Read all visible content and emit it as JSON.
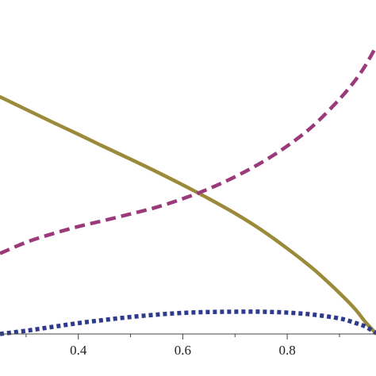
{
  "chart_data": {
    "type": "line",
    "title": "",
    "xlabel": "",
    "ylabel": "",
    "xlim": [
      0.25,
      0.97
    ],
    "ylim": [
      0,
      1
    ],
    "grid": false,
    "legend": "none",
    "x_ticks": [
      {
        "value": 0.4,
        "label": "0.4"
      },
      {
        "value": 0.6,
        "label": "0.6"
      },
      {
        "value": 0.8,
        "label": "0.8"
      }
    ],
    "series": [
      {
        "style": "solid",
        "color": "#9a8a3a",
        "points": [
          [
            0.25,
            0.81
          ],
          [
            0.3,
            0.767
          ],
          [
            0.35,
            0.724
          ],
          [
            0.4,
            0.682
          ],
          [
            0.45,
            0.639
          ],
          [
            0.5,
            0.597
          ],
          [
            0.55,
            0.554
          ],
          [
            0.6,
            0.509
          ],
          [
            0.65,
            0.462
          ],
          [
            0.7,
            0.412
          ],
          [
            0.75,
            0.356
          ],
          [
            0.8,
            0.292
          ],
          [
            0.85,
            0.222
          ],
          [
            0.9,
            0.14
          ],
          [
            0.93,
            0.085
          ],
          [
            0.95,
            0.04
          ],
          [
            0.97,
            0.002
          ]
        ]
      },
      {
        "style": "dashed",
        "color": "#9b3a7a",
        "points": [
          [
            0.25,
            0.275
          ],
          [
            0.3,
            0.313
          ],
          [
            0.35,
            0.342
          ],
          [
            0.4,
            0.367
          ],
          [
            0.45,
            0.388
          ],
          [
            0.5,
            0.41
          ],
          [
            0.55,
            0.433
          ],
          [
            0.6,
            0.462
          ],
          [
            0.65,
            0.496
          ],
          [
            0.7,
            0.537
          ],
          [
            0.75,
            0.585
          ],
          [
            0.8,
            0.642
          ],
          [
            0.85,
            0.712
          ],
          [
            0.9,
            0.802
          ],
          [
            0.93,
            0.866
          ],
          [
            0.95,
            0.918
          ],
          [
            0.97,
            0.981
          ]
        ]
      },
      {
        "style": "dotted",
        "color": "#2e3a8c",
        "points": [
          [
            0.25,
            0.0
          ],
          [
            0.3,
            0.011
          ],
          [
            0.35,
            0.024
          ],
          [
            0.4,
            0.037
          ],
          [
            0.45,
            0.048
          ],
          [
            0.5,
            0.058
          ],
          [
            0.55,
            0.066
          ],
          [
            0.6,
            0.072
          ],
          [
            0.65,
            0.075
          ],
          [
            0.7,
            0.076
          ],
          [
            0.75,
            0.076
          ],
          [
            0.8,
            0.073
          ],
          [
            0.85,
            0.066
          ],
          [
            0.9,
            0.053
          ],
          [
            0.93,
            0.038
          ],
          [
            0.95,
            0.025
          ],
          [
            0.97,
            0.003
          ]
        ]
      }
    ]
  }
}
